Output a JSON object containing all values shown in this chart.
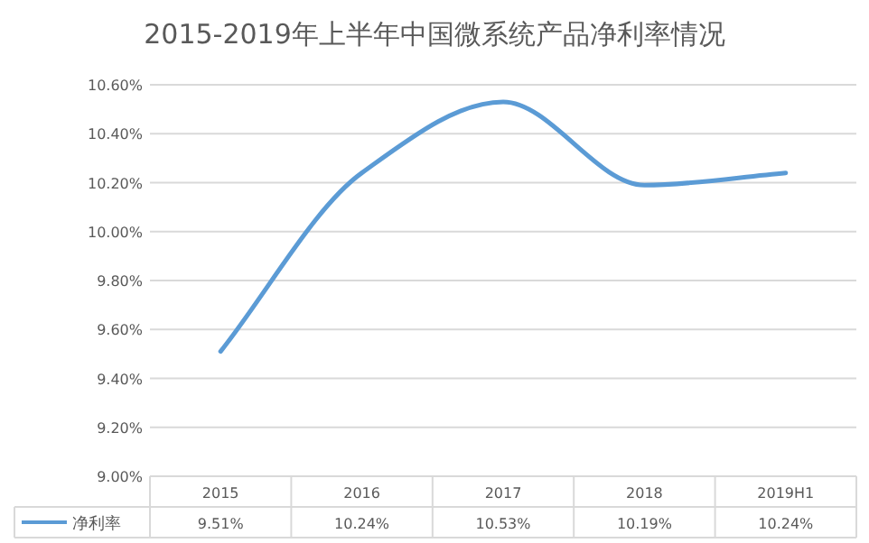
{
  "chart_data": {
    "type": "line",
    "title": "2015-2019年上半年中国微系统产品净利率情况",
    "categories": [
      "2015",
      "2016",
      "2017",
      "2018",
      "2019H1"
    ],
    "series": [
      {
        "name": "净利率",
        "color": "#5b9bd5",
        "values": [
          9.51,
          10.24,
          10.53,
          10.19,
          10.24
        ],
        "value_labels": [
          "9.51%",
          "10.24%",
          "10.53%",
          "10.19%",
          "10.24%"
        ]
      }
    ],
    "ylim": [
      9.0,
      10.6
    ],
    "yticks": [
      {
        "value": 9.0,
        "label": "9.00%"
      },
      {
        "value": 9.2,
        "label": "9.20%"
      },
      {
        "value": 9.4,
        "label": "9.40%"
      },
      {
        "value": 9.6,
        "label": "9.60%"
      },
      {
        "value": 9.8,
        "label": "9.80%"
      },
      {
        "value": 10.0,
        "label": "10.00%"
      },
      {
        "value": 10.2,
        "label": "10.20%"
      },
      {
        "value": 10.4,
        "label": "10.40%"
      },
      {
        "value": 10.6,
        "label": "10.60%"
      }
    ],
    "grid": "y",
    "legend": "bottom",
    "marker": "none",
    "line_style": "solid"
  }
}
